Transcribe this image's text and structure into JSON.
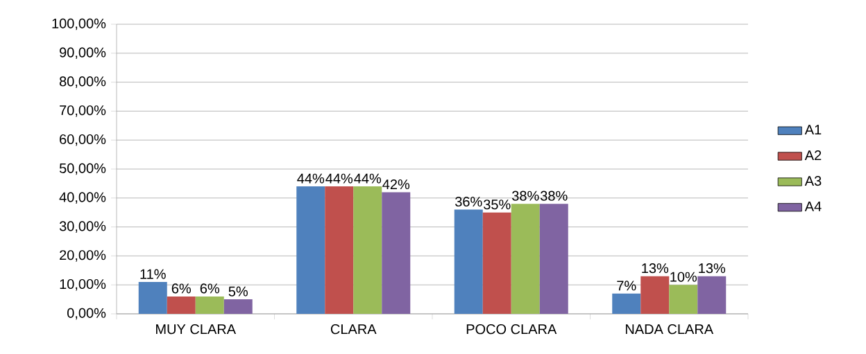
{
  "chart_data": {
    "type": "bar",
    "categories": [
      "MUY CLARA",
      "CLARA",
      "POCO CLARA",
      "NADA CLARA"
    ],
    "series": [
      {
        "name": "A1",
        "color": "#4f81bd",
        "values": [
          11,
          44,
          36,
          7
        ],
        "value_labels": [
          "11%",
          "44%",
          "36%",
          "7%"
        ]
      },
      {
        "name": "A2",
        "color": "#c0504d",
        "values": [
          6,
          44,
          35,
          13
        ],
        "value_labels": [
          "6%",
          "44%",
          "35%",
          "13%"
        ]
      },
      {
        "name": "A3",
        "color": "#9bbb59",
        "values": [
          6,
          44,
          38,
          10
        ],
        "value_labels": [
          "6%",
          "44%",
          "38%",
          "10%"
        ]
      },
      {
        "name": "A4",
        "color": "#8064a2",
        "values": [
          5,
          42,
          38,
          13
        ],
        "value_labels": [
          "5%",
          "42%",
          "38%",
          "13%"
        ]
      }
    ],
    "ylim": [
      0,
      100
    ],
    "yticks": [
      {
        "value": 0,
        "label": "0,00%"
      },
      {
        "value": 10,
        "label": "10,00%"
      },
      {
        "value": 20,
        "label": "20,00%"
      },
      {
        "value": 30,
        "label": "30,00%"
      },
      {
        "value": 40,
        "label": "40,00%"
      },
      {
        "value": 50,
        "label": "50,00%"
      },
      {
        "value": 60,
        "label": "60,00%"
      },
      {
        "value": 70,
        "label": "70,00%"
      },
      {
        "value": 80,
        "label": "80,00%"
      },
      {
        "value": 90,
        "label": "90,00%"
      },
      {
        "value": 100,
        "label": "100,00%"
      }
    ],
    "grid": "y",
    "legend": "right"
  }
}
